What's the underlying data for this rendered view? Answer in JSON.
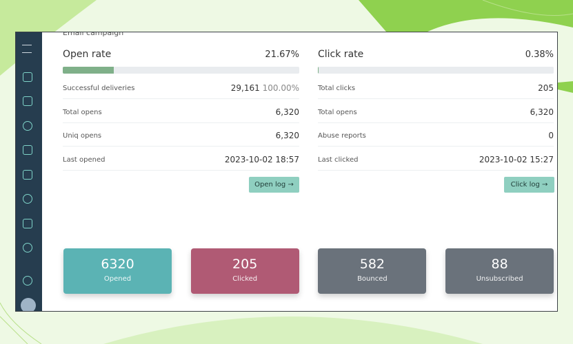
{
  "heading": "Email campaign",
  "open": {
    "title": "Open rate",
    "rate": {
      "value": 21.67,
      "label": "21.67%"
    },
    "rows": [
      {
        "label": "Successful deliveries",
        "value": "29,161",
        "extra": "100.00%"
      },
      {
        "label": "Total opens",
        "value": "6,320"
      },
      {
        "label": "Uniq opens",
        "value": "6,320"
      },
      {
        "label": "Last opened",
        "value": "2023-10-02 18:57"
      }
    ],
    "button": "Open log →"
  },
  "click": {
    "title": "Click rate",
    "rate": {
      "value": 0.38,
      "label": "0.38%"
    },
    "rows": [
      {
        "label": "Total clicks",
        "value": "205"
      },
      {
        "label": "Total opens",
        "value": "6,320"
      },
      {
        "label": "Abuse reports",
        "value": "0"
      },
      {
        "label": "Last clicked",
        "value": "2023-10-02 15:27"
      }
    ],
    "button": "Click log →"
  },
  "cards": [
    {
      "number": "6320",
      "caption": "Opened",
      "color": "#5bb3b4"
    },
    {
      "number": "205",
      "caption": "Clicked",
      "color": "#b05a74"
    },
    {
      "number": "582",
      "caption": "Bounced",
      "color": "#6a727b"
    },
    {
      "number": "88",
      "caption": "Unsubscribed",
      "color": "#6a727b"
    }
  ]
}
